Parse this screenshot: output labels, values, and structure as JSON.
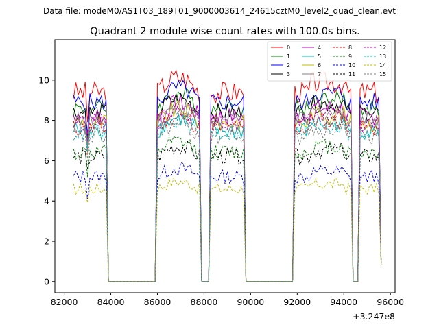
{
  "chart_data": {
    "type": "line",
    "suptitle": "Data file: modeM0/AS1T03_189T01_9000003614_24615cztM0_level2_quad_clean.evt",
    "title": "Quadrant 2 module wise count rates with 100.0s bins.",
    "xlabel": "",
    "ylabel": "",
    "x_offset_label": "+3.247e8",
    "xlim": [
      81600,
      96200
    ],
    "ylim": [
      -0.55,
      12.0
    ],
    "x_ticks": [
      82000,
      84000,
      86000,
      88000,
      90000,
      92000,
      94000,
      96000
    ],
    "x_tick_labels": [
      "82000",
      "84000",
      "86000",
      "88000",
      "90000",
      "92000",
      "94000",
      "96000"
    ],
    "y_ticks": [
      0,
      2,
      4,
      6,
      8,
      10
    ],
    "y_tick_labels": [
      "0",
      "2",
      "4",
      "6",
      "8",
      "10"
    ],
    "grid": false,
    "legend_position": "top-right",
    "legend_columns": 4,
    "x_range": [
      82400,
      95600
    ],
    "bin_step": 100,
    "on_intervals": [
      [
        82400,
        83800
      ],
      [
        86000,
        87800
      ],
      [
        88300,
        89700
      ],
      [
        91900,
        94300
      ],
      [
        94700,
        95600
      ]
    ],
    "series": [
      {
        "name": "0",
        "color": "#ff0000",
        "dash": "solid",
        "level": 9.4,
        "amp": 0.55
      },
      {
        "name": "1",
        "color": "#008000",
        "dash": "solid",
        "level": 8.6,
        "amp": 0.45
      },
      {
        "name": "2",
        "color": "#0000ff",
        "dash": "solid",
        "level": 8.9,
        "amp": 0.45
      },
      {
        "name": "3",
        "color": "#000000",
        "dash": "solid",
        "level": 8.4,
        "amp": 0.45
      },
      {
        "name": "4",
        "color": "#c000c0",
        "dash": "solid",
        "level": 8.2,
        "amp": 0.45
      },
      {
        "name": "5",
        "color": "#00bfbf",
        "dash": "solid",
        "level": 7.5,
        "amp": 0.45
      },
      {
        "name": "6",
        "color": "#bfbf00",
        "dash": "solid",
        "level": 7.9,
        "amp": 0.45
      },
      {
        "name": "7",
        "color": "#808080",
        "dash": "solid",
        "level": 8.0,
        "amp": 0.45
      },
      {
        "name": "8",
        "color": "#ff0000",
        "dash": "dashed",
        "level": 7.6,
        "amp": 0.45
      },
      {
        "name": "9",
        "color": "#008000",
        "dash": "dashed",
        "level": 6.4,
        "amp": 0.4
      },
      {
        "name": "10",
        "color": "#0000ff",
        "dash": "dashed",
        "level": 5.2,
        "amp": 0.35
      },
      {
        "name": "11",
        "color": "#000000",
        "dash": "dashed",
        "level": 6.2,
        "amp": 0.4
      },
      {
        "name": "12",
        "color": "#c000c0",
        "dash": "dashed",
        "level": 7.9,
        "amp": 0.45
      },
      {
        "name": "13",
        "color": "#00bfbf",
        "dash": "dashed",
        "level": 7.4,
        "amp": 0.45
      },
      {
        "name": "14",
        "color": "#bfbf00",
        "dash": "dashed",
        "level": 4.6,
        "amp": 0.3
      },
      {
        "name": "15",
        "color": "#808080",
        "dash": "dashed",
        "level": 7.2,
        "amp": 0.45
      }
    ]
  }
}
